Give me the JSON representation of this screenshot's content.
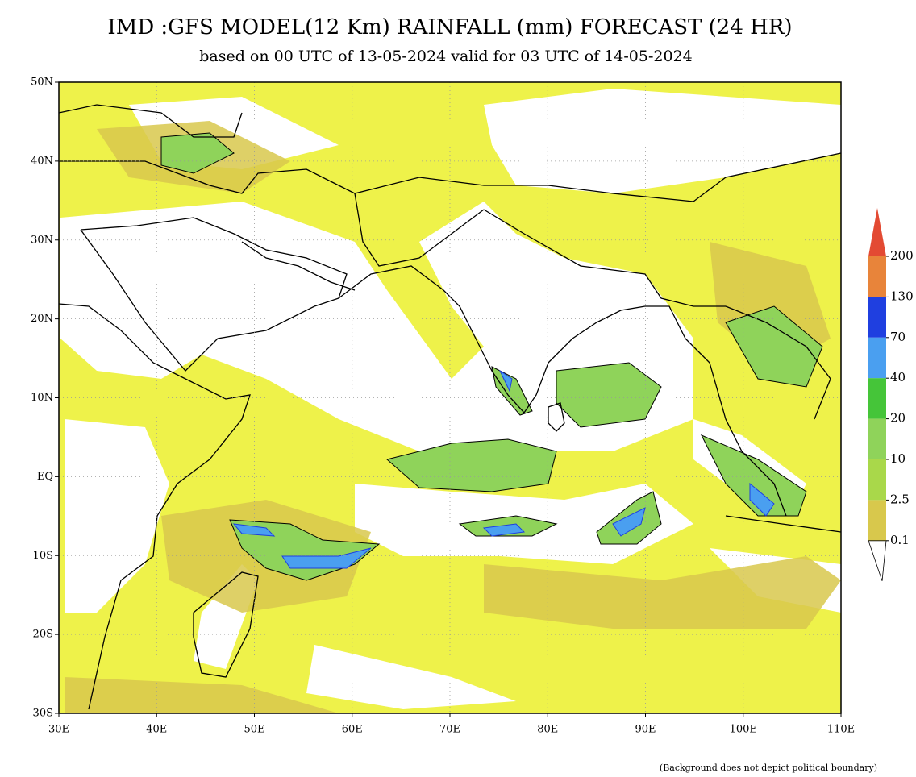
{
  "title": "IMD :GFS MODEL(12 Km) RAINFALL (mm) FORECAST (24 HR)",
  "subtitle": "based on 00 UTC of 13-05-2024 valid for 03 UTC of 14-05-2024",
  "lat_labels": [
    "50N",
    "40N",
    "30N",
    "20N",
    "10N",
    "EQ",
    "10S",
    "20S",
    "30S"
  ],
  "lon_labels": [
    "30E",
    "40E",
    "50E",
    "60E",
    "70E",
    "80E",
    "90E",
    "100E",
    "110E"
  ],
  "legend": {
    "labels": [
      "200",
      "130",
      "70",
      "40",
      "20",
      "10",
      "2.5",
      "0.1"
    ]
  },
  "footnote": "(Background does not depict political boundary)"
}
